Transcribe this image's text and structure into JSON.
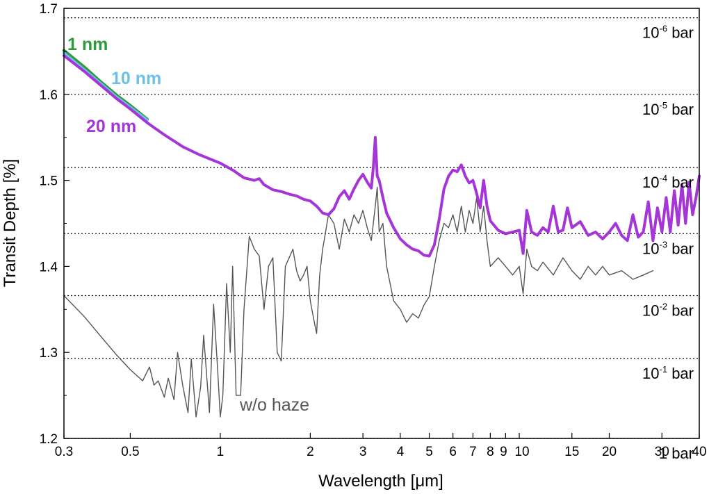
{
  "chart_data": {
    "type": "line",
    "xlabel": "Wavelength [μm]",
    "ylabel": "Transit Depth [%]",
    "x_scale": "log",
    "xlim": [
      0.3,
      40
    ],
    "ylim": [
      1.2,
      1.7
    ],
    "x_ticks": [
      {
        "value": 0.3,
        "label": "0.3"
      },
      {
        "value": 0.5,
        "label": "0.5"
      },
      {
        "value": 1,
        "label": "1"
      },
      {
        "value": 2,
        "label": "2"
      },
      {
        "value": 3,
        "label": "3"
      },
      {
        "value": 4,
        "label": "4"
      },
      {
        "value": 5,
        "label": "5"
      },
      {
        "value": 6,
        "label": "6"
      },
      {
        "value": 7,
        "label": "7"
      },
      {
        "value": 8,
        "label": "8"
      },
      {
        "value": 9,
        "label": "9"
      },
      {
        "value": 10,
        "label": "10"
      },
      {
        "value": 15,
        "label": "15"
      },
      {
        "value": 20,
        "label": "20"
      },
      {
        "value": 30,
        "label": "30"
      },
      {
        "value": 40,
        "label": "40"
      }
    ],
    "y_ticks": [
      {
        "value": 1.2,
        "label": "1.2"
      },
      {
        "value": 1.3,
        "label": "1.3"
      },
      {
        "value": 1.4,
        "label": "1.4"
      },
      {
        "value": 1.5,
        "label": "1.5"
      },
      {
        "value": 1.6,
        "label": "1.6"
      },
      {
        "value": 1.7,
        "label": "1.7"
      }
    ],
    "pressure_levels": [
      {
        "depth": 1.689,
        "base": "10",
        "exp": "-6",
        "unit": " bar"
      },
      {
        "depth": 1.6,
        "base": "10",
        "exp": "-5",
        "unit": " bar"
      },
      {
        "depth": 1.515,
        "base": "10",
        "exp": "-4",
        "unit": " bar"
      },
      {
        "depth": 1.438,
        "base": "10",
        "exp": "-3",
        "unit": " bar"
      },
      {
        "depth": 1.366,
        "base": "10",
        "exp": "-2",
        "unit": " bar"
      },
      {
        "depth": 1.293,
        "base": "10",
        "exp": "-1",
        "unit": " bar"
      },
      {
        "depth": 1.2,
        "base": "1",
        "exp": "",
        "unit": " bar"
      }
    ],
    "series": [
      {
        "name": "1 nm",
        "color": "#2e9a3a",
        "x": [
          0.3,
          0.35,
          0.4,
          0.45,
          0.5,
          0.57
        ],
        "y": [
          1.651,
          1.632,
          1.614,
          1.599,
          1.587,
          1.571
        ]
      },
      {
        "name": "10 nm",
        "color": "#6cc0e8",
        "x": [
          0.3,
          0.35,
          0.4,
          0.45,
          0.5,
          0.57
        ],
        "y": [
          1.648,
          1.629,
          1.612,
          1.597,
          1.585,
          1.57
        ]
      },
      {
        "name": "20 nm",
        "color": "#a535d6",
        "x": [
          0.3,
          0.35,
          0.4,
          0.45,
          0.5,
          0.57,
          0.65,
          0.75,
          0.85,
          1.0,
          1.1,
          1.2,
          1.3,
          1.35,
          1.4,
          1.5,
          1.6,
          1.7,
          1.8,
          1.9,
          2.0,
          2.1,
          2.2,
          2.3,
          2.4,
          2.5,
          2.6,
          2.7,
          2.8,
          2.9,
          3.0,
          3.1,
          3.2,
          3.25,
          3.3,
          3.35,
          3.4,
          3.5,
          3.6,
          3.8,
          4.0,
          4.2,
          4.4,
          4.6,
          4.8,
          5.0,
          5.2,
          5.4,
          5.6,
          5.8,
          6.0,
          6.2,
          6.4,
          6.6,
          6.8,
          7.0,
          7.2,
          7.4,
          7.6,
          7.8,
          8.0,
          8.5,
          9.0,
          9.5,
          10.0,
          10.3,
          10.6,
          11.0,
          11.5,
          12.0,
          12.5,
          13.0,
          13.5,
          14.0,
          14.5,
          15.0,
          16.0,
          17.0,
          18.0,
          19.0,
          20.0,
          21.0,
          22.0,
          23.0,
          24.0,
          25.0,
          26.0,
          27.0,
          28.0,
          29.0,
          30.0,
          31.0,
          32.0,
          33.0,
          34.0,
          35.0,
          36.0,
          37.0,
          38.0,
          39.0,
          40.0
        ],
        "y": [
          1.645,
          1.627,
          1.61,
          1.595,
          1.583,
          1.567,
          1.553,
          1.539,
          1.53,
          1.52,
          1.512,
          1.503,
          1.5,
          1.502,
          1.495,
          1.489,
          1.487,
          1.484,
          1.482,
          1.478,
          1.476,
          1.47,
          1.462,
          1.46,
          1.467,
          1.481,
          1.488,
          1.478,
          1.49,
          1.5,
          1.507,
          1.498,
          1.491,
          1.515,
          1.55,
          1.505,
          1.5,
          1.48,
          1.462,
          1.445,
          1.432,
          1.425,
          1.42,
          1.418,
          1.413,
          1.412,
          1.425,
          1.455,
          1.49,
          1.505,
          1.512,
          1.51,
          1.518,
          1.505,
          1.497,
          1.5,
          1.485,
          1.468,
          1.5,
          1.47,
          1.453,
          1.442,
          1.438,
          1.44,
          1.442,
          1.415,
          1.465,
          1.44,
          1.436,
          1.445,
          1.44,
          1.47,
          1.44,
          1.442,
          1.468,
          1.445,
          1.452,
          1.436,
          1.44,
          1.432,
          1.44,
          1.45,
          1.436,
          1.43,
          1.46,
          1.434,
          1.44,
          1.475,
          1.43,
          1.468,
          1.44,
          1.48,
          1.44,
          1.488,
          1.448,
          1.495,
          1.45,
          1.498,
          1.46,
          1.48,
          1.505
        ]
      },
      {
        "name": "w/o haze",
        "color": "#555555",
        "x": [
          0.3,
          0.35,
          0.4,
          0.45,
          0.5,
          0.55,
          0.58,
          0.6,
          0.62,
          0.65,
          0.67,
          0.7,
          0.72,
          0.75,
          0.78,
          0.8,
          0.83,
          0.86,
          0.88,
          0.92,
          0.95,
          0.98,
          1.0,
          1.02,
          1.05,
          1.08,
          1.1,
          1.13,
          1.17,
          1.2,
          1.25,
          1.3,
          1.35,
          1.4,
          1.45,
          1.5,
          1.55,
          1.6,
          1.65,
          1.7,
          1.75,
          1.8,
          1.85,
          1.9,
          1.95,
          2.0,
          2.05,
          2.1,
          2.15,
          2.2,
          2.25,
          2.3,
          2.4,
          2.5,
          2.6,
          2.7,
          2.8,
          2.9,
          3.0,
          3.1,
          3.2,
          3.3,
          3.35,
          3.4,
          3.5,
          3.6,
          3.8,
          4.0,
          4.2,
          4.4,
          4.6,
          4.8,
          5.0,
          5.2,
          5.4,
          5.6,
          5.8,
          6.0,
          6.2,
          6.4,
          6.6,
          6.8,
          7.0,
          7.2,
          7.4,
          7.6,
          7.8,
          8.0,
          8.5,
          9.0,
          9.5,
          10.0,
          10.3,
          10.6,
          11.0,
          11.5,
          12.0,
          13.0,
          14.0,
          15.0,
          16.0,
          17.0,
          18.0,
          19.0,
          20.0,
          22.0,
          24.0,
          26.0,
          28.0
        ],
        "y": [
          1.366,
          1.342,
          1.318,
          1.297,
          1.28,
          1.267,
          1.283,
          1.262,
          1.267,
          1.248,
          1.27,
          1.245,
          1.3,
          1.26,
          1.23,
          1.292,
          1.225,
          1.26,
          1.32,
          1.23,
          1.356,
          1.28,
          1.225,
          1.25,
          1.38,
          1.3,
          1.4,
          1.25,
          1.25,
          1.35,
          1.435,
          1.42,
          1.412,
          1.35,
          1.4,
          1.41,
          1.3,
          1.29,
          1.4,
          1.41,
          1.42,
          1.395,
          1.383,
          1.39,
          1.4,
          1.36,
          1.34,
          1.322,
          1.39,
          1.42,
          1.44,
          1.46,
          1.45,
          1.42,
          1.455,
          1.44,
          1.46,
          1.45,
          1.465,
          1.445,
          1.43,
          1.47,
          1.492,
          1.44,
          1.45,
          1.4,
          1.36,
          1.35,
          1.335,
          1.345,
          1.34,
          1.355,
          1.365,
          1.4,
          1.43,
          1.45,
          1.445,
          1.46,
          1.44,
          1.47,
          1.44,
          1.465,
          1.45,
          1.48,
          1.44,
          1.47,
          1.43,
          1.4,
          1.41,
          1.4,
          1.39,
          1.4,
          1.368,
          1.42,
          1.4,
          1.395,
          1.405,
          1.39,
          1.41,
          1.395,
          1.385,
          1.4,
          1.39,
          1.4,
          1.39,
          1.395,
          1.385,
          1.39,
          1.395
        ]
      }
    ],
    "series_labels": [
      {
        "text": "1 nm",
        "color": "#2e9a3a"
      },
      {
        "text": "10 nm",
        "color": "#6cc0e8"
      },
      {
        "text": "20 nm",
        "color": "#a535d6"
      },
      {
        "text": "w/o haze",
        "color": "#555555"
      }
    ]
  }
}
